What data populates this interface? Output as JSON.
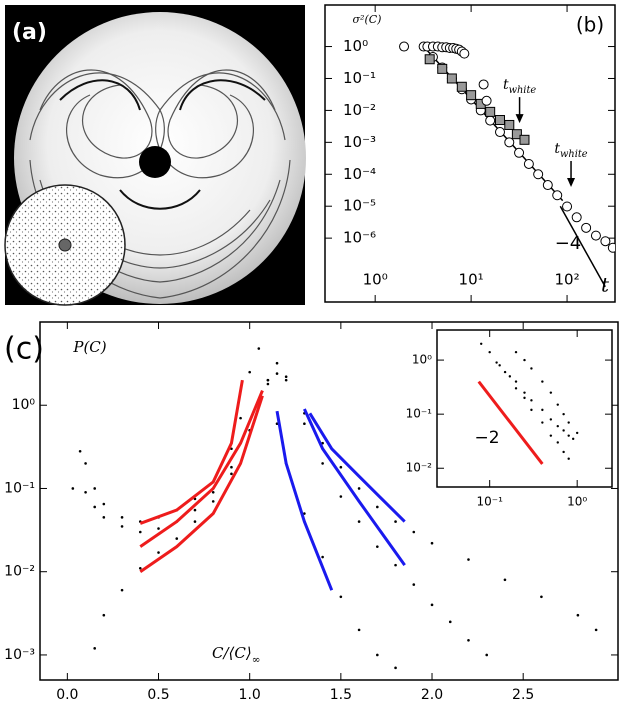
{
  "panel_a": {
    "label": "(a)"
  },
  "chart_data": [
    {
      "type": "scatter",
      "panel_label": "(b)",
      "ylabel": "σ²(C)",
      "xlabel": "t",
      "xscale": "log",
      "yscale": "log",
      "xlim": [
        0.3,
        316
      ],
      "ylim": [
        1e-08,
        20
      ],
      "xticks": [
        {
          "value": 1,
          "label": "10⁰"
        },
        {
          "value": 10,
          "label": "10¹"
        },
        {
          "value": 100,
          "label": "10²"
        }
      ],
      "yticks": [
        {
          "value": 1,
          "label": "10⁰"
        },
        {
          "value": 0.1,
          "label": "10⁻¹"
        },
        {
          "value": 0.01,
          "label": "10⁻²"
        },
        {
          "value": 0.001,
          "label": "10⁻³"
        },
        {
          "value": 0.0001,
          "label": "10⁻⁴"
        },
        {
          "value": 1e-05,
          "label": "10⁻⁵"
        },
        {
          "value": 1e-06,
          "label": "10⁻⁶"
        }
      ],
      "series": [
        {
          "marker": "line",
          "color": "#000000",
          "x": [
            3.2,
            90
          ],
          "values": [
            1,
            1.5e-05
          ]
        },
        {
          "marker": "open-circle",
          "color": "#000000",
          "x": [
            3.2,
            4,
            5,
            6.3,
            8,
            10,
            12.6,
            15.8,
            20,
            25,
            31.6,
            40,
            50,
            63,
            79,
            100,
            126,
            158,
            200,
            251,
            300
          ],
          "values": [
            1,
            0.47,
            0.22,
            0.1,
            0.046,
            0.022,
            0.01,
            0.0048,
            0.0021,
            0.001,
            0.00047,
            0.00021,
            0.0001,
            4.6e-05,
            2.2e-05,
            9.8e-06,
            4.5e-06,
            2.1e-06,
            1.2e-06,
            8e-07,
            5e-07
          ]
        },
        {
          "marker": "square",
          "color": "#999999",
          "x": [
            3.7,
            5,
            6.3,
            8,
            10,
            12.6,
            15.8,
            20,
            25,
            30,
            36
          ],
          "values": [
            0.4,
            0.2,
            0.1,
            0.055,
            0.03,
            0.016,
            0.009,
            0.005,
            0.0035,
            0.0018,
            0.0012
          ]
        },
        {
          "marker": "open-circle",
          "color": "#000000",
          "x": [
            2,
            3.5,
            4,
            4.5,
            5,
            5.5,
            6,
            6.5,
            7,
            7.5,
            8,
            8.5,
            13.5,
            14.5
          ],
          "values": [
            1,
            1,
            1,
            1,
            0.95,
            0.95,
            0.9,
            0.9,
            0.85,
            0.8,
            0.7,
            0.6,
            0.065,
            0.02
          ]
        },
        {
          "marker": "line",
          "color": "#000000",
          "x": [
            85,
            250
          ],
          "values": [
            1e-05,
            3e-08
          ]
        }
      ],
      "slope_label": "−4",
      "annotations": [
        {
          "base": "t",
          "sub": "white",
          "x": 32,
          "y": 0.004
        },
        {
          "base": "t",
          "sub": "white",
          "x": 110,
          "y": 4e-05
        }
      ]
    },
    {
      "type": "scatter",
      "panel_label": "(c)",
      "ylabel": "P(C)",
      "xlabel": {
        "base": "C/⟨C⟩",
        "sub": "∞"
      },
      "xscale": "linear",
      "yscale": "log",
      "xlim": [
        -0.15,
        3.02
      ],
      "ylim": [
        0.0005,
        10
      ],
      "xticks": [
        {
          "value": 0,
          "label": "0.0"
        },
        0.5,
        {
          "value": 1,
          "label": "1.0"
        },
        1.5,
        {
          "value": 2,
          "label": "2.0"
        },
        2.5
      ],
      "yticks": [
        {
          "value": 1,
          "label": "10⁰"
        },
        {
          "value": 0.1,
          "label": "10⁻¹"
        },
        {
          "value": 0.01,
          "label": "10⁻²"
        },
        {
          "value": 0.001,
          "label": "10⁻³"
        }
      ],
      "series": [
        {
          "marker": "dot",
          "color": "#000000",
          "x": [
            0.03,
            0.07,
            0.1,
            0.15,
            0.2,
            0.3,
            0.4,
            0.5,
            0.6,
            0.7,
            0.8,
            0.9,
            0.95,
            1.0,
            1.05,
            1.1,
            1.15,
            1.2,
            1.3,
            1.4,
            1.5,
            1.6,
            1.7,
            1.8
          ],
          "values": [
            0.1,
            0.28,
            0.2,
            0.1,
            0.065,
            0.045,
            0.04,
            0.045,
            0.055,
            0.075,
            0.12,
            0.3,
            0.7,
            2.5,
            4.8,
            2,
            0.6,
            0.2,
            0.05,
            0.015,
            0.005,
            0.002,
            0.001,
            0.0007
          ]
        },
        {
          "marker": "dot",
          "color": "#000000",
          "x": [
            0.15,
            0.2,
            0.3,
            0.4,
            0.5,
            0.6,
            0.7,
            0.8,
            0.9,
            1.0,
            1.1,
            1.15,
            1.2,
            1.3,
            1.4,
            1.5,
            1.6,
            1.7,
            1.8,
            1.9,
            2.0,
            2.1,
            2.2,
            2.3
          ],
          "values": [
            0.0012,
            0.003,
            0.006,
            0.011,
            0.017,
            0.025,
            0.04,
            0.07,
            0.15,
            0.5,
            2,
            3.2,
            2.2,
            0.6,
            0.2,
            0.08,
            0.04,
            0.02,
            0.012,
            0.007,
            0.004,
            0.0025,
            0.0015,
            0.001
          ]
        },
        {
          "marker": "dot",
          "color": "#000000",
          "x": [
            0.1,
            0.15,
            0.2,
            0.3,
            0.4,
            0.5,
            0.6,
            0.7,
            0.8,
            0.9,
            1.0,
            1.1,
            1.15,
            1.2,
            1.3,
            1.4,
            1.5,
            1.6,
            1.7,
            1.8,
            1.9,
            2.0,
            2.2,
            2.4,
            2.6,
            2.8,
            2.9
          ],
          "values": [
            0.09,
            0.06,
            0.045,
            0.035,
            0.03,
            0.033,
            0.04,
            0.055,
            0.09,
            0.18,
            0.5,
            1.8,
            2.4,
            2,
            0.8,
            0.35,
            0.18,
            0.1,
            0.06,
            0.04,
            0.03,
            0.022,
            0.014,
            0.008,
            0.005,
            0.003,
            0.002
          ]
        },
        {
          "marker": "line",
          "color": "#ee1c1c",
          "x": [
            0.4,
            0.6,
            0.8,
            0.9,
            0.96
          ],
          "values": [
            0.038,
            0.055,
            0.12,
            0.35,
            2
          ]
        },
        {
          "marker": "line",
          "color": "#ee1c1c",
          "x": [
            0.4,
            0.6,
            0.8,
            0.95,
            1.07
          ],
          "values": [
            0.02,
            0.04,
            0.1,
            0.35,
            1.5
          ]
        },
        {
          "marker": "line",
          "color": "#ee1c1c",
          "x": [
            0.4,
            0.6,
            0.8,
            0.95,
            1.07
          ],
          "values": [
            0.01,
            0.02,
            0.05,
            0.2,
            1.3
          ]
        },
        {
          "marker": "line",
          "color": "#1a1aee",
          "x": [
            1.15,
            1.2,
            1.3,
            1.45
          ],
          "values": [
            0.85,
            0.2,
            0.04,
            0.006
          ]
        },
        {
          "marker": "line",
          "color": "#1a1aee",
          "x": [
            1.3,
            1.4,
            1.6,
            1.85
          ],
          "values": [
            0.9,
            0.3,
            0.07,
            0.012
          ]
        },
        {
          "marker": "line",
          "color": "#1a1aee",
          "x": [
            1.33,
            1.45,
            1.6,
            1.85
          ],
          "values": [
            0.8,
            0.3,
            0.14,
            0.04
          ]
        }
      ]
    },
    {
      "type": "scatter",
      "xscale": "log",
      "yscale": "log",
      "xlim": [
        0.025,
        2.5
      ],
      "ylim": [
        0.0045,
        3.6
      ],
      "xticks": [
        {
          "value": 0.1,
          "label": "10⁻¹"
        },
        {
          "value": 1,
          "label": "10⁰"
        }
      ],
      "yticks": [
        {
          "value": 1,
          "label": "10⁰"
        },
        {
          "value": 0.1,
          "label": "10⁻¹"
        },
        {
          "value": 0.01,
          "label": "10⁻²"
        }
      ],
      "series": [
        {
          "marker": "dot",
          "color": "#000000",
          "x": [
            0.08,
            0.1,
            0.13,
            0.17,
            0.2,
            0.25,
            0.3,
            0.4,
            0.5,
            0.6,
            0.7,
            0.8
          ],
          "values": [
            2,
            1.4,
            0.8,
            0.5,
            0.3,
            0.2,
            0.12,
            0.07,
            0.04,
            0.03,
            0.02,
            0.015
          ]
        },
        {
          "marker": "dot",
          "color": "#000000",
          "x": [
            0.12,
            0.15,
            0.2,
            0.25,
            0.3,
            0.4,
            0.5,
            0.6,
            0.7,
            0.8,
            0.9
          ],
          "values": [
            0.9,
            0.6,
            0.4,
            0.25,
            0.18,
            0.12,
            0.08,
            0.06,
            0.05,
            0.04,
            0.035
          ]
        },
        {
          "marker": "dot",
          "color": "#000000",
          "x": [
            0.2,
            0.25,
            0.3,
            0.4,
            0.5,
            0.6,
            0.7,
            0.8,
            1.0
          ],
          "values": [
            1.4,
            1,
            0.7,
            0.4,
            0.25,
            0.15,
            0.1,
            0.07,
            0.045
          ]
        },
        {
          "marker": "line",
          "color": "#ee1c1c",
          "x": [
            0.075,
            0.4
          ],
          "values": [
            0.4,
            0.012
          ]
        }
      ],
      "slope_label": "−2"
    }
  ]
}
